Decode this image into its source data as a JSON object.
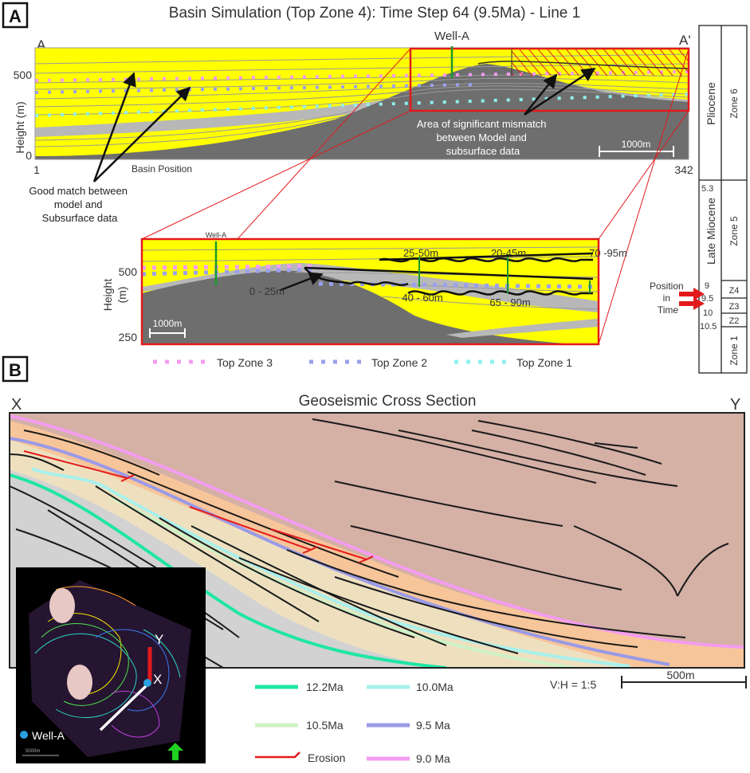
{
  "panel_a": {
    "badge": "A",
    "title": "Basin Simulation (Top Zone 4): Time Step 64 (9.5Ma) - Line 1",
    "corner_left": "A",
    "corner_right": "A'",
    "well_label": "Well-A",
    "y_label": "Height (m)",
    "y_tick_500": "500",
    "y_tick_0": "0",
    "x_start": "1",
    "x_end": "342",
    "x_label": "Basin Position",
    "note_good": [
      "Good match between",
      "model and",
      "Subsurface data"
    ],
    "note_mismatch": [
      "Area of significant mismatch",
      "between Model and",
      "subsurface data"
    ],
    "scale_label": "1000m",
    "inset": {
      "well_label": "Well-A",
      "y_label_1": "Height",
      "y_label_2": "(m)",
      "tick_500": "500",
      "tick_250": "250",
      "scale_label": "1000m",
      "thickness_labels": [
        "25-50m",
        "20-45m",
        "70 -95m",
        "0 - 25m",
        "40 - 60m",
        "65 - 90m"
      ]
    },
    "legend": [
      {
        "label": "Top Zone 3",
        "color": "#f49cf0"
      },
      {
        "label": "Top Zone 2",
        "color": "#9aa0ee"
      },
      {
        "label": "Top Zone 1",
        "color": "#8ef0ee"
      }
    ]
  },
  "stratigraphy": {
    "epochs": [
      "Pliocene",
      "Late Miocene"
    ],
    "zones": [
      "Zone 6",
      "Zone 5",
      "Z4",
      "Z3",
      "Z2",
      "Zone 1"
    ],
    "ages": [
      "5.3",
      "9",
      "9.5",
      "10",
      "10.5"
    ],
    "position_label": [
      "Position",
      "in",
      "Time"
    ]
  },
  "panel_b": {
    "badge": "B",
    "title": "Geoseismic Cross Section",
    "corner_left": "X",
    "corner_right": "Y",
    "ratio": "V:H = 1:5",
    "scale_label": "500m",
    "legend": [
      {
        "label": "12.2Ma",
        "color": "#1fe6a4"
      },
      {
        "label": "10.0Ma",
        "color": "#a8f0ec"
      },
      {
        "label": "10.5Ma",
        "color": "#cdf2c6"
      },
      {
        "label": "9.5 Ma",
        "color": "#9a9ae8"
      },
      {
        "label": "Erosion",
        "color": "#e31a1c"
      },
      {
        "label": "9.0 Ma",
        "color": "#f49cf0"
      }
    ],
    "map": {
      "y_label": "Y",
      "x_label": "X",
      "well_label": "Well-A",
      "scale_label": "5000m"
    }
  },
  "colors": {
    "fill_yellow": "#ffff00",
    "basement_grey": "#6e6e6e",
    "mismatch_red": "#e31a1c",
    "top_brown": "#d4b0a5",
    "orange_layer": "#f7c59a",
    "beige_layer": "#eee0bf",
    "grey_layer": "#d2d2d2"
  }
}
